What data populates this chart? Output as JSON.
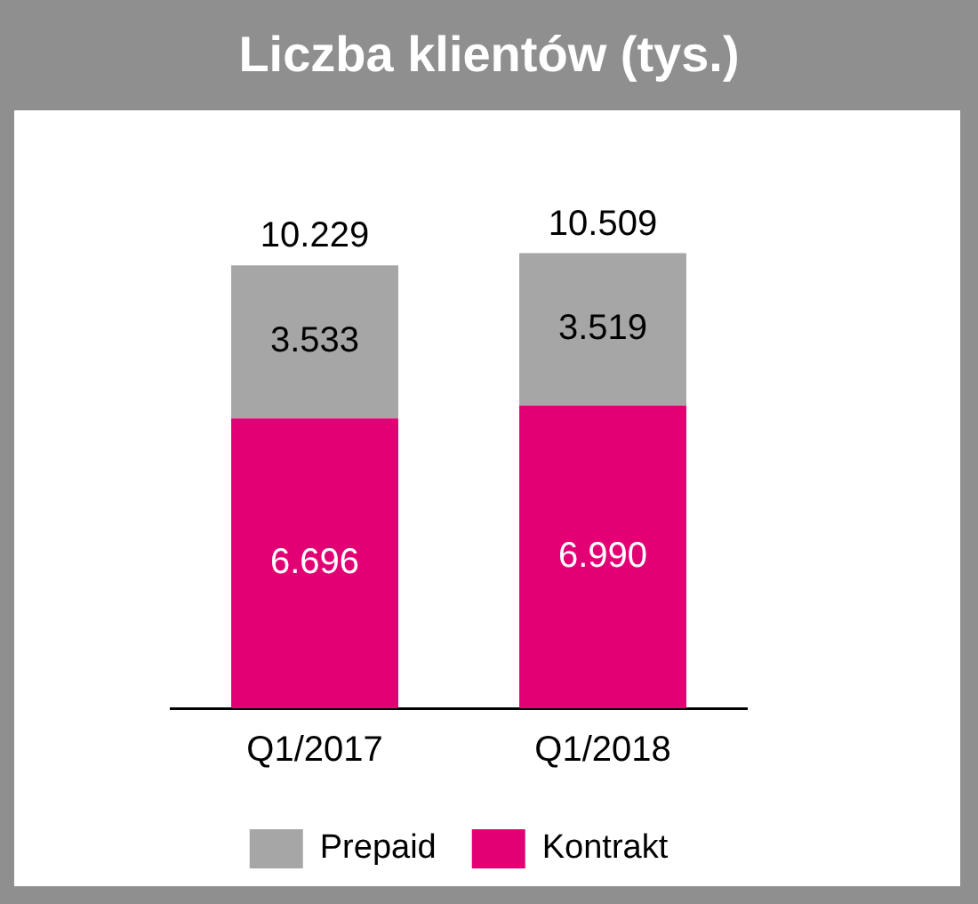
{
  "chart_data": {
    "type": "bar",
    "title": "Liczba klientów (tys.)",
    "stacked": true,
    "categories": [
      "Q1/2017",
      "Q1/2018"
    ],
    "series": [
      {
        "name": "Kontrakt",
        "color": "#e20074",
        "values": [
          6696,
          6990
        ],
        "value_labels": [
          "6.696",
          "6.990"
        ]
      },
      {
        "name": "Prepaid",
        "color": "#a6a6a6",
        "values": [
          3533,
          3519
        ],
        "value_labels": [
          "3.533",
          "3.519"
        ]
      }
    ],
    "totals": [
      "10.229",
      "10.509"
    ],
    "legend": "bottom",
    "grid": false
  }
}
